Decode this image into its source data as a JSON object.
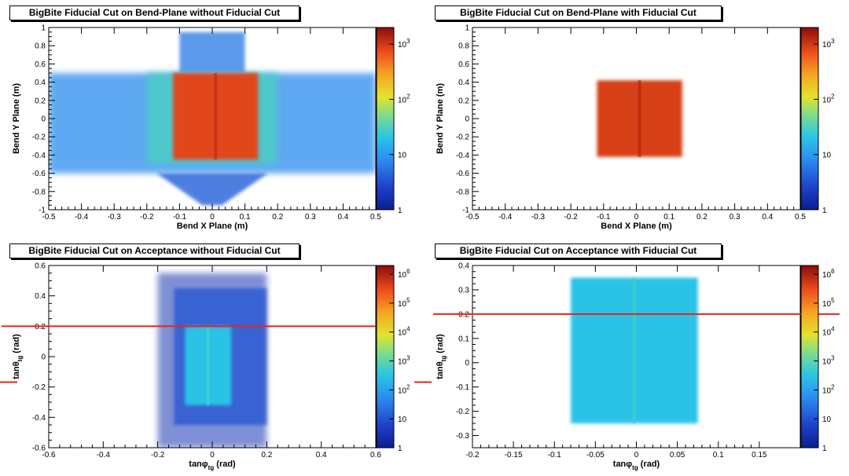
{
  "chart_data": [
    {
      "type": "heatmap",
      "title": "BigBite Fiducial Cut on Bend-Plane without Fiducial Cut",
      "xlabel": "Bend X Plane (m)",
      "ylabel": "Bend Y Plane (m)",
      "xlim": [
        -0.5,
        0.5
      ],
      "ylim": [
        -1.0,
        1.0
      ],
      "xticks": [
        -0.5,
        -0.4,
        -0.3,
        -0.2,
        -0.1,
        0,
        0.1,
        0.2,
        0.3,
        0.4,
        0.5
      ],
      "xtick_labels": [
        "-0.5",
        "-0.4",
        "-0.3",
        "-0.2",
        "-0.1",
        "0",
        "0.1",
        "0.2",
        "0.3",
        "0.4",
        "0.5"
      ],
      "yticks": [
        -1,
        -0.8,
        -0.6,
        -0.4,
        -0.2,
        0,
        0.2,
        0.4,
        0.6,
        0.8,
        1
      ],
      "ytick_labels": [
        "-1",
        "-0.8",
        "-0.6",
        "-0.4",
        "-0.2",
        "0",
        "0.2",
        "0.4",
        "0.6",
        "0.8",
        "1"
      ],
      "z_scale": "log",
      "zlim": [
        1,
        2000
      ],
      "colorbar_ticks": [
        1,
        10,
        100,
        1000
      ],
      "colorbar_labels": [
        "1",
        "10",
        "10^2",
        "10^3"
      ],
      "hot_region": {
        "x": [
          -0.12,
          0.14
        ],
        "y": [
          -0.45,
          0.5
        ],
        "level": 800
      },
      "halo_region": {
        "x": [
          -0.5,
          0.5
        ],
        "y": [
          -0.6,
          0.5
        ],
        "level": 8
      }
    },
    {
      "type": "heatmap",
      "title": "BigBite Fiducial Cut on Bend-Plane with Fiducial Cut",
      "xlabel": "Bend X Plane (m)",
      "ylabel": "Bend Y Plane (m)",
      "xlim": [
        -0.5,
        0.5
      ],
      "ylim": [
        -1.0,
        1.0
      ],
      "xticks": [
        -0.5,
        -0.4,
        -0.3,
        -0.2,
        -0.1,
        0,
        0.1,
        0.2,
        0.3,
        0.4,
        0.5
      ],
      "xtick_labels": [
        "-0.5",
        "-0.4",
        "-0.3",
        "-0.2",
        "-0.1",
        "0",
        "0.1",
        "0.2",
        "0.3",
        "0.4",
        "0.5"
      ],
      "yticks": [
        -1,
        -0.8,
        -0.6,
        -0.4,
        -0.2,
        0,
        0.2,
        0.4,
        0.6,
        0.8,
        1
      ],
      "ytick_labels": [
        "-1",
        "-0.8",
        "-0.6",
        "-0.4",
        "-0.2",
        "0",
        "0.2",
        "0.4",
        "0.6",
        "0.8",
        "1"
      ],
      "z_scale": "log",
      "zlim": [
        1,
        2000
      ],
      "colorbar_ticks": [
        1,
        10,
        100,
        1000
      ],
      "colorbar_labels": [
        "1",
        "10",
        "10^2",
        "10^3"
      ],
      "hot_region": {
        "x": [
          -0.12,
          0.14
        ],
        "y": [
          -0.42,
          0.42
        ],
        "level": 900
      }
    },
    {
      "type": "heatmap",
      "title": "BigBite Fiducial Cut on Acceptance without Fiducial Cut",
      "xlabel": "tanφ_tg (rad)",
      "ylabel": "tanθ_tg (rad)",
      "xlim": [
        -0.6,
        0.6
      ],
      "ylim": [
        -0.6,
        0.6
      ],
      "xticks": [
        -0.6,
        -0.4,
        -0.2,
        0,
        0.2,
        0.4,
        0.6
      ],
      "xtick_labels": [
        "-0.6",
        "-0.4",
        "-0.2",
        "0",
        "0.2",
        "0.4",
        "0.6"
      ],
      "yticks": [
        -0.6,
        -0.4,
        -0.2,
        0,
        0.2,
        0.4,
        0.6
      ],
      "ytick_labels": [
        "-0.6",
        "-0.4",
        "-0.2",
        "0",
        "0.2",
        "0.4",
        "0.6"
      ],
      "z_scale": "log",
      "zlim": [
        1,
        2000000
      ],
      "colorbar_ticks": [
        1,
        10,
        100,
        1000,
        10000,
        100000,
        1000000
      ],
      "colorbar_labels": [
        "1",
        "10",
        "10^2",
        "10^3",
        "10^4",
        "10^5",
        "10^6"
      ],
      "hot_region": {
        "x": [
          -0.1,
          0.07
        ],
        "y": [
          -0.32,
          0.2
        ],
        "level": 300
      },
      "reference_line_y": 0.2,
      "reference_line_color": "#e8231c"
    },
    {
      "type": "heatmap",
      "title": "BigBite Fiducial Cut on Acceptance with Fiducial Cut",
      "xlabel": "tanφ_tg (rad)",
      "ylabel": "tanθ_tg (rad)",
      "xlim": [
        -0.2,
        0.2
      ],
      "ylim": [
        -0.35,
        0.4
      ],
      "xticks": [
        -0.2,
        -0.15,
        -0.1,
        -0.05,
        0,
        0.05,
        0.1,
        0.15
      ],
      "xtick_labels": [
        "-0.2",
        "-0.15",
        "-0.1",
        "-0.05",
        "0",
        "0.05",
        "0.1",
        "0.15"
      ],
      "yticks": [
        -0.3,
        -0.2,
        -0.1,
        0,
        0.1,
        0.2,
        0.3,
        0.4
      ],
      "ytick_labels": [
        "-0.3",
        "-0.2",
        "-0.1",
        "0",
        "0.1",
        "0.2",
        "0.3",
        "0.4"
      ],
      "z_scale": "log",
      "zlim": [
        1,
        2000000
      ],
      "colorbar_ticks": [
        1,
        10,
        100,
        1000,
        10000,
        100000,
        1000000
      ],
      "colorbar_labels": [
        "1",
        "10",
        "10^2",
        "10^3",
        "10^4",
        "10^5",
        "10^6"
      ],
      "hot_region": {
        "x": [
          -0.08,
          0.075
        ],
        "y": [
          -0.25,
          0.35
        ],
        "level": 300
      },
      "reference_line_y": 0.2,
      "reference_line_color": "#e8231c"
    }
  ]
}
